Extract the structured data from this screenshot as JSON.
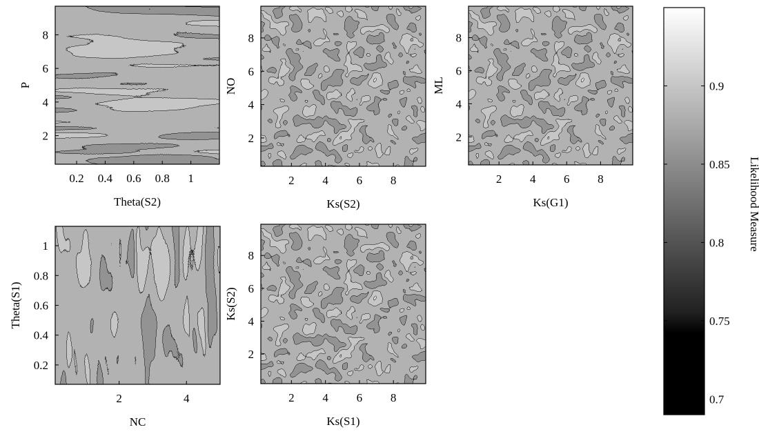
{
  "chart_data": [
    {
      "type": "heatmap",
      "title": "",
      "xlabel": "Theta(S2)",
      "ylabel": "P",
      "xlim": [
        0.05,
        1.2
      ],
      "ylim": [
        0.3,
        9.7
      ],
      "xticks": [
        0.2,
        0.4,
        0.6,
        0.8,
        1
      ],
      "xtick_labels": [
        "0.2",
        "0.4",
        "0.6",
        "0.8",
        "1"
      ],
      "yticks": [
        2,
        4,
        6,
        8
      ],
      "ytick_labels": [
        "2",
        "4",
        "6",
        "8"
      ],
      "texture": "horizontal-streaks"
    },
    {
      "type": "heatmap",
      "title": "",
      "xlabel": "Ks(S2)",
      "ylabel": "NO",
      "xlim": [
        0.2,
        9.9
      ],
      "ylim": [
        0.3,
        9.9
      ],
      "xticks": [
        2,
        4,
        6,
        8
      ],
      "xtick_labels": [
        "2",
        "4",
        "6",
        "8"
      ],
      "yticks": [
        2,
        4,
        6,
        8
      ],
      "ytick_labels": [
        "2",
        "4",
        "6",
        "8"
      ],
      "texture": "isotropic"
    },
    {
      "type": "heatmap",
      "title": "",
      "xlabel": "Ks(G1)",
      "ylabel": "ML",
      "xlim": [
        0.2,
        9.9
      ],
      "ylim": [
        0.3,
        9.9
      ],
      "xticks": [
        2,
        4,
        6,
        8
      ],
      "xtick_labels": [
        "2",
        "4",
        "6",
        "8"
      ],
      "yticks": [
        2,
        4,
        6,
        8
      ],
      "ytick_labels": [
        "2",
        "4",
        "6",
        "8"
      ],
      "texture": "isotropic"
    },
    {
      "type": "heatmap",
      "title": "",
      "xlabel": "NC",
      "ylabel": "Theta(S1)",
      "xlim": [
        0.1,
        5.0
      ],
      "ylim": [
        0.07,
        1.13
      ],
      "xticks": [
        2,
        4
      ],
      "xtick_labels": [
        "2",
        "4"
      ],
      "yticks": [
        0.2,
        0.4,
        0.6,
        0.8,
        1
      ],
      "ytick_labels": [
        "0.2",
        "0.4",
        "0.6",
        "0.8",
        "1"
      ],
      "texture": "vertical-streaks"
    },
    {
      "type": "heatmap",
      "title": "",
      "xlabel": "Ks(S1)",
      "ylabel": "Ks(S2)",
      "xlim": [
        0.2,
        9.9
      ],
      "ylim": [
        0.2,
        9.9
      ],
      "xticks": [
        2,
        4,
        6,
        8
      ],
      "xtick_labels": [
        "2",
        "4",
        "6",
        "8"
      ],
      "yticks": [
        2,
        4,
        6,
        8
      ],
      "ytick_labels": [
        "2",
        "4",
        "6",
        "8"
      ],
      "texture": "isotropic"
    }
  ],
  "colorbar": {
    "label": "Likelihood Measure",
    "range": [
      0.69,
      0.95
    ],
    "ticks": [
      0.7,
      0.75,
      0.8,
      0.85,
      0.9
    ],
    "tick_labels": [
      "0.7",
      "0.75",
      "0.8",
      "0.85",
      "0.9"
    ],
    "colormap": "gray"
  }
}
